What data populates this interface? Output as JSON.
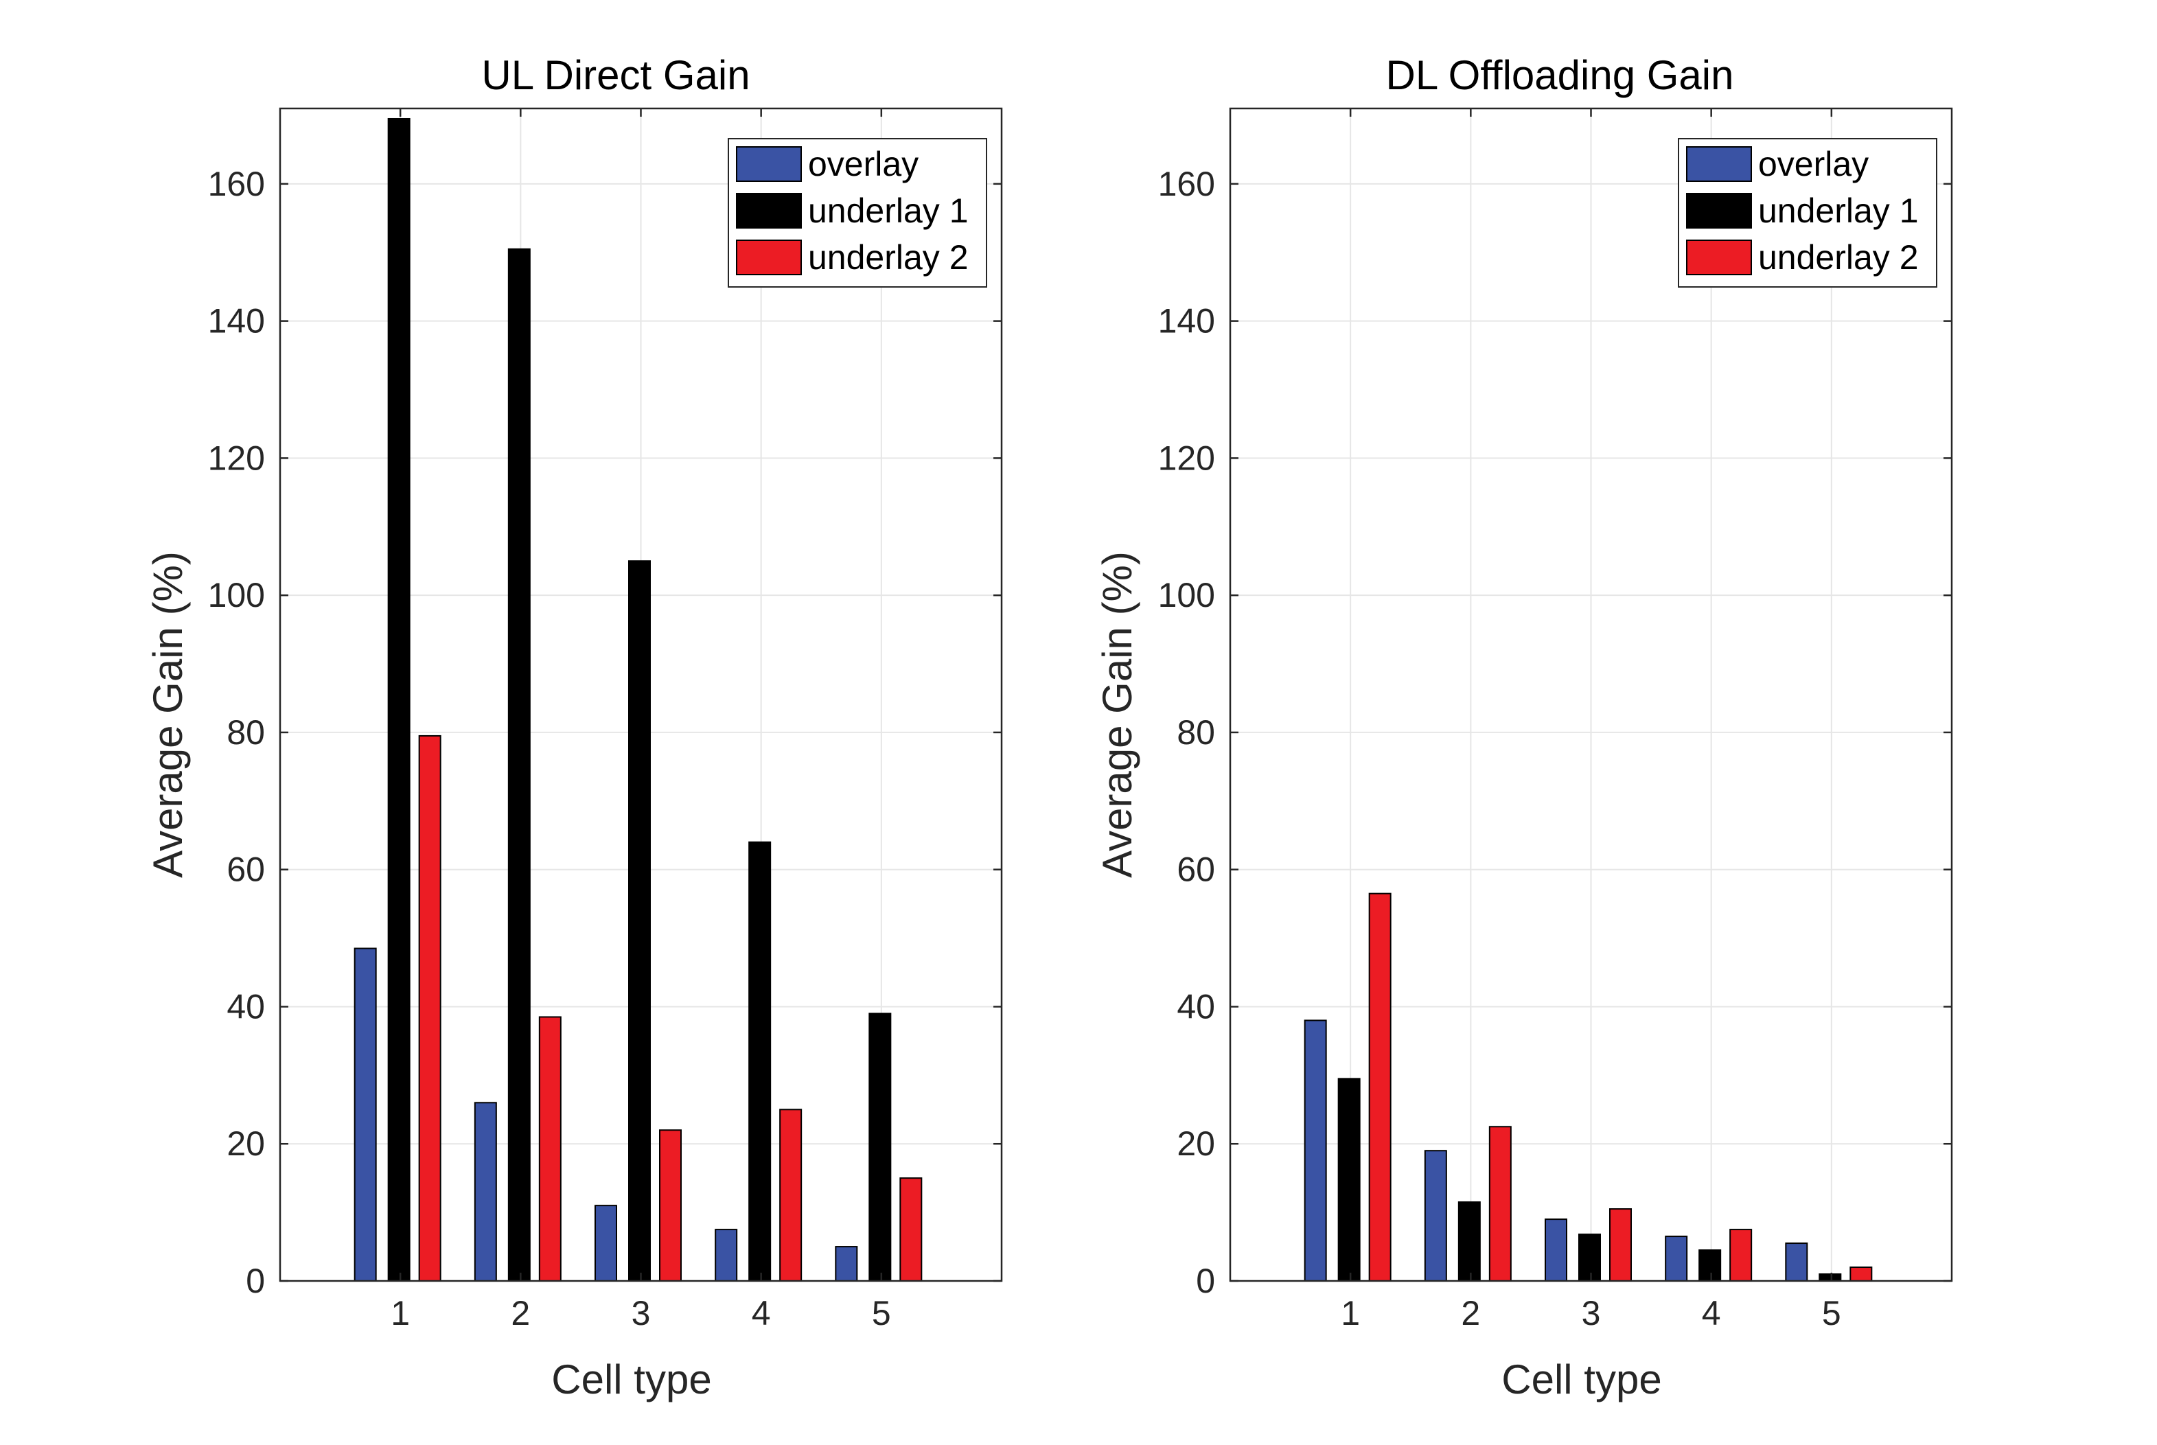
{
  "colors": {
    "overlay": "#3A53A4",
    "underlay1": "#000000",
    "underlay2": "#EC1C24",
    "grid": "#E6E6E6",
    "axis": "#262626"
  },
  "chart_data": [
    {
      "type": "bar",
      "title": "UL Direct Gain",
      "xlabel": "Cell type",
      "ylabel": "Average Gain (%)",
      "categories": [
        "1",
        "2",
        "3",
        "4",
        "5"
      ],
      "xlim": [
        0,
        6
      ],
      "ylim": [
        0,
        171
      ],
      "yticks": [
        0,
        20,
        40,
        60,
        80,
        100,
        120,
        140,
        160
      ],
      "grid": true,
      "legend_location": "top-right",
      "series": [
        {
          "name": "overlay",
          "color_key": "overlay",
          "values": [
            48.5,
            26,
            11,
            7.5,
            5
          ]
        },
        {
          "name": "underlay 1",
          "color_key": "underlay1",
          "values": [
            169.5,
            150.5,
            105,
            64,
            39
          ]
        },
        {
          "name": "underlay 2",
          "color_key": "underlay2",
          "values": [
            79.5,
            38.5,
            22,
            25,
            15
          ]
        }
      ]
    },
    {
      "type": "bar",
      "title": "DL Offloading Gain",
      "xlabel": "Cell type",
      "ylabel": "Average Gain (%)",
      "categories": [
        "1",
        "2",
        "3",
        "4",
        "5"
      ],
      "xlim": [
        0,
        6
      ],
      "ylim": [
        0,
        171
      ],
      "yticks": [
        0,
        20,
        40,
        60,
        80,
        100,
        120,
        140,
        160
      ],
      "grid": true,
      "legend_location": "top-right",
      "series": [
        {
          "name": "overlay",
          "color_key": "overlay",
          "values": [
            38,
            19,
            9,
            6.5,
            5.5
          ]
        },
        {
          "name": "underlay 1",
          "color_key": "underlay1",
          "values": [
            29.5,
            11.5,
            6.8,
            4.5,
            1
          ]
        },
        {
          "name": "underlay 2",
          "color_key": "underlay2",
          "values": [
            56.5,
            22.5,
            10.5,
            7.5,
            2
          ]
        }
      ]
    }
  ]
}
